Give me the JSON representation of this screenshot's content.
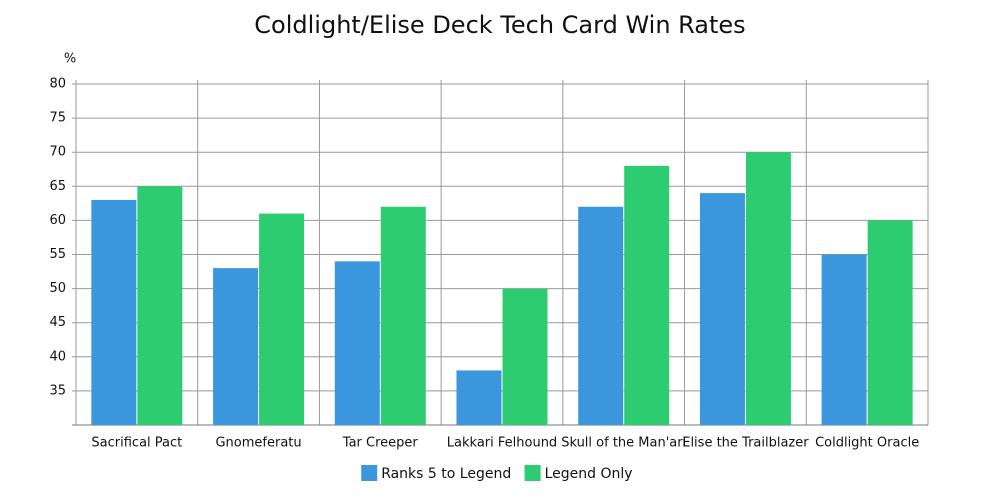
{
  "chart_data": {
    "type": "bar",
    "title": "Coldlight/Elise Deck Tech Card Win Rates",
    "y_label": "%",
    "categories": [
      "Sacrifical Pact",
      "Gnomeferatu",
      "Tar Creeper",
      "Lakkari Felhound",
      "Skull of the Man'ari",
      "Elise the Trailblazer",
      "Coldlight Oracle"
    ],
    "series": [
      {
        "name": "Ranks 5 to Legend",
        "color": "#3a96dd",
        "values": [
          63,
          53,
          54,
          38,
          62,
          64,
          55
        ]
      },
      {
        "name": "Legend Only",
        "color": "#2ecc71",
        "values": [
          65,
          61,
          62,
          50,
          68,
          70,
          60
        ]
      }
    ],
    "ylim": [
      30,
      80
    ],
    "yticks": [
      35,
      40,
      45,
      50,
      55,
      60,
      65,
      70,
      75,
      80
    ],
    "grid": true,
    "legend": "bottom"
  }
}
